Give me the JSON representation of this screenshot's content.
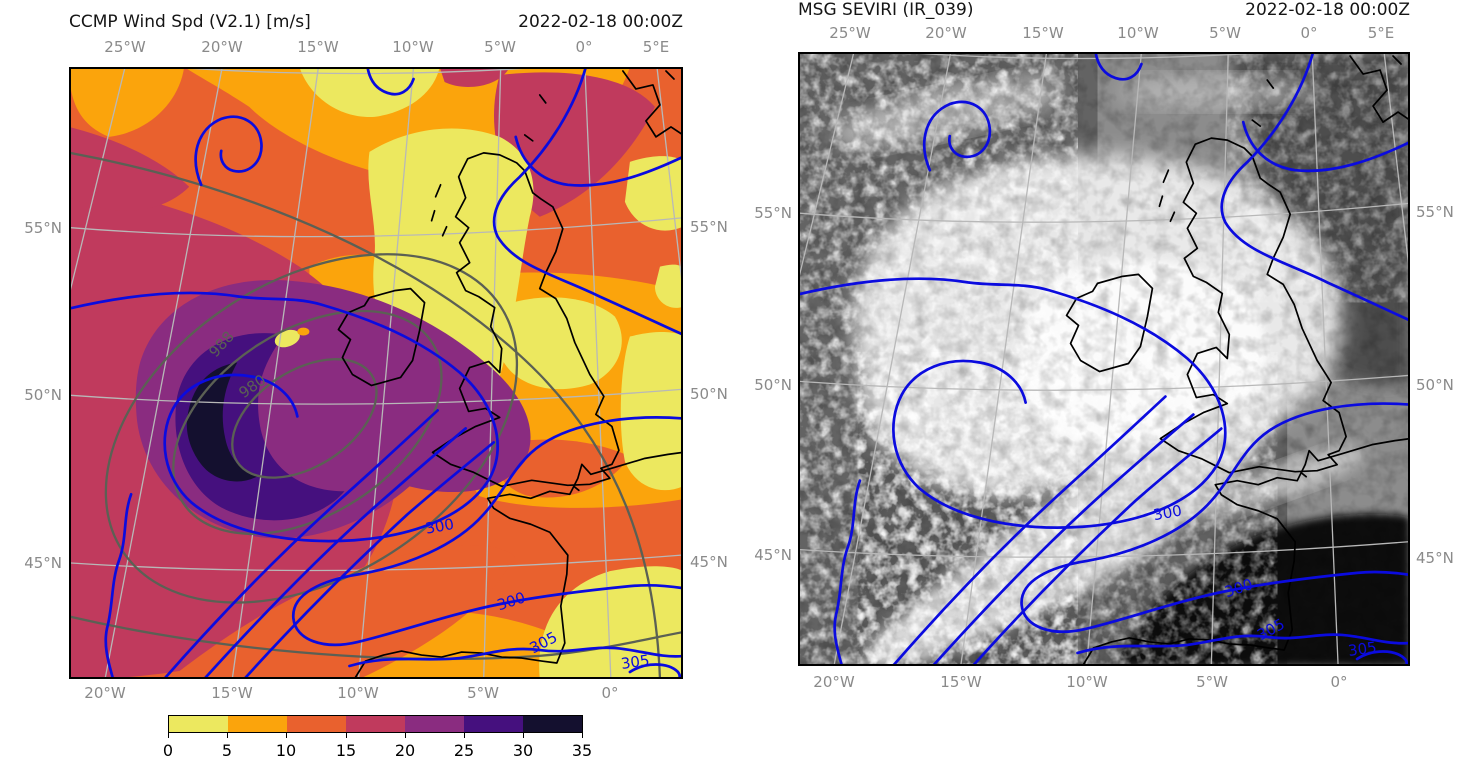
{
  "left_panel": {
    "title": "CCMP Wind Spd (V2.1) [m/s]",
    "timestamp": "2022-02-18 00:00Z",
    "top_ticks": [
      "25°W",
      "20°W",
      "15°W",
      "10°W",
      "5°W",
      "0°",
      "5°E"
    ],
    "bottom_ticks": [
      "20°W",
      "15°W",
      "10°W",
      "5°W",
      "0°"
    ],
    "lat_left": [
      "55°N",
      "50°N",
      "45°N"
    ],
    "lat_right": [
      "55°N",
      "50°N",
      "45°N"
    ],
    "contour_labels": {
      "mslp": [
        "988",
        "980"
      ],
      "blue": [
        "300",
        "300",
        "305",
        "305"
      ]
    }
  },
  "right_panel": {
    "title": "MSG SEVIRI (IR_039)",
    "timestamp": "2022-02-18 00:00Z",
    "top_ticks": [
      "25°W",
      "20°W",
      "15°W",
      "10°W",
      "5°W",
      "0°",
      "5°E"
    ],
    "bottom_ticks": [
      "20°W",
      "15°W",
      "10°W",
      "5°W",
      "0°"
    ],
    "lat_left": [
      "55°N",
      "50°N",
      "45°N"
    ],
    "lat_right": [
      "55°N",
      "50°N",
      "45°N"
    ],
    "contour_labels": {
      "blue": [
        "300",
        "300",
        "305",
        "305"
      ]
    }
  },
  "colorbar": {
    "tick_labels": [
      "0",
      "5",
      "10",
      "15",
      "20",
      "25",
      "30",
      "35"
    ],
    "segment_colors": [
      "#ece85f",
      "#fba40c",
      "#e9612e",
      "#c03a5d",
      "#8a2c80",
      "#45107e",
      "#14102f"
    ]
  },
  "colors": {
    "blue_contour": "#0b0bdf",
    "pressure_contour": "#5b6054",
    "coastline": "#000000",
    "gridline": "#b8b8b8",
    "tick_label": "#8a8a8a"
  },
  "chart_data": [
    {
      "type": "heatmap",
      "title": "CCMP Wind Spd (V2.1) [m/s]",
      "timestamp": "2022-02-18 00:00Z",
      "variable": "surface wind speed",
      "units": "m/s",
      "levels": [
        0,
        5,
        10,
        15,
        20,
        25,
        30,
        35
      ],
      "level_colors": [
        "#ece85f",
        "#fba40c",
        "#e9612e",
        "#c03a5d",
        "#8a2c80",
        "#45107e",
        "#14102f"
      ],
      "x_ticks_top": [
        "25°W",
        "20°W",
        "15°W",
        "10°W",
        "5°W",
        "0°",
        "5°E"
      ],
      "x_ticks_bottom": [
        "20°W",
        "15°W",
        "10°W",
        "5°W",
        "0°"
      ],
      "y_ticks": [
        "55°N",
        "50°N",
        "45°N"
      ],
      "grid": true,
      "legend_position": "colorbar below panel",
      "projection_hint": "curved graticule with coastlines (UK, Ireland, France, N Spain)",
      "features": [
        "intense wind maximum 30-35 m/s in crescent southwest of Ireland around deep low",
        "weak winds 0-5 m/s over Scotland/northern England and over SW France",
        "spiral banding of 15-25 m/s winds around low center near 50N 17W"
      ],
      "overlays": [
        {
          "name": "pressure contours",
          "color": "#5b6054",
          "labeled_values": [
            980,
            988
          ]
        },
        {
          "name": "blue contours",
          "color": "#0b0bdf",
          "labeled_values": [
            300,
            305
          ]
        }
      ]
    },
    {
      "type": "heatmap",
      "title": "MSG SEVIRI (IR_039)",
      "timestamp": "2022-02-18 00:00Z",
      "variable": "IR 3.9 um brightness (grayscale satellite image)",
      "units": "grayscale",
      "x_ticks_top": [
        "25°W",
        "20°W",
        "15°W",
        "10°W",
        "5°W",
        "0°",
        "5°E"
      ],
      "x_ticks_bottom": [
        "20°W",
        "15°W",
        "10°W",
        "5°W",
        "0°"
      ],
      "y_ticks": [
        "55°N",
        "50°N",
        "45°N"
      ],
      "grid": true,
      "features": [
        "bright comma cloud shield over Ireland and the UK",
        "speckled cold-sector cumulus field over Atlantic to the west",
        "dark cloud-free slot over France and Bay of Biscay",
        "narrow bright frontal band running SW-NE toward the low center"
      ],
      "overlays": [
        {
          "name": "blue contours",
          "color": "#0b0bdf",
          "labeled_values": [
            300,
            305
          ]
        }
      ]
    }
  ]
}
